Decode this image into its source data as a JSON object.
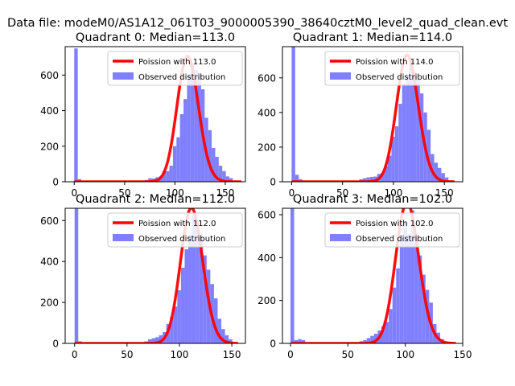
{
  "suptitle": "Data file: modeM0/AS1A12_061T03_9000005390_38640cztM0_level2_quad_clean.evt",
  "colors": {
    "poisson": "#ff0000",
    "observed": "#8080ff",
    "axis": "#000000",
    "legend_border": "#cccccc"
  },
  "chart_data": [
    {
      "type": "bar",
      "title": "Quadrant 0: Median=113.0",
      "xlabel": "",
      "ylabel": "",
      "xlim": [
        -9,
        170
      ],
      "ylim": [
        0,
        760
      ],
      "xticks": [
        0,
        50,
        100,
        150
      ],
      "yticks": [
        0,
        200,
        400,
        600
      ],
      "grid": false,
      "legend_position": "top-right",
      "series": [
        {
          "name": "Poission with 113.0",
          "kind": "line",
          "mean": 113.0,
          "x_range": [
            0,
            166
          ]
        },
        {
          "name": "Observed distribution",
          "kind": "histogram",
          "bin_width": 3.5,
          "bins": [
            [
              0,
              750
            ],
            [
              3.5,
              15
            ],
            [
              70,
              10
            ],
            [
              73.5,
              20
            ],
            [
              77,
              18
            ],
            [
              80.5,
              25
            ],
            [
              84,
              30
            ],
            [
              87.5,
              60
            ],
            [
              91,
              60
            ],
            [
              94.5,
              90
            ],
            [
              98,
              200
            ],
            [
              101.5,
              250
            ],
            [
              105,
              380
            ],
            [
              108.5,
              465
            ],
            [
              112,
              605
            ],
            [
              115.5,
              665
            ],
            [
              119,
              630
            ],
            [
              122.5,
              610
            ],
            [
              126,
              520
            ],
            [
              129.5,
              360
            ],
            [
              133,
              290
            ],
            [
              136.5,
              190
            ],
            [
              140,
              140
            ],
            [
              143.5,
              90
            ],
            [
              147,
              60
            ],
            [
              150.5,
              30
            ],
            [
              154,
              20
            ]
          ]
        }
      ]
    },
    {
      "type": "bar",
      "title": "Quadrant 1: Median=114.0",
      "xlabel": "",
      "ylabel": "",
      "xlim": [
        -9,
        168
      ],
      "ylim": [
        0,
        780
      ],
      "xticks": [
        0,
        50,
        100,
        150
      ],
      "yticks": [
        0,
        200,
        400,
        600
      ],
      "grid": false,
      "legend_position": "top-right",
      "series": [
        {
          "name": "Poission with 114.0",
          "kind": "line",
          "mean": 114.0,
          "x_range": [
            0,
            160
          ]
        },
        {
          "name": "Observed distribution",
          "kind": "histogram",
          "bin_width": 3.5,
          "bins": [
            [
              0,
              780
            ],
            [
              3.5,
              40
            ],
            [
              7,
              15
            ],
            [
              66.5,
              15
            ],
            [
              70,
              20
            ],
            [
              73.5,
              25
            ],
            [
              77,
              28
            ],
            [
              80.5,
              30
            ],
            [
              84,
              45
            ],
            [
              87.5,
              50
            ],
            [
              91,
              90
            ],
            [
              94.5,
              150
            ],
            [
              98,
              260
            ],
            [
              101.5,
              320
            ],
            [
              105,
              450
            ],
            [
              108.5,
              565
            ],
            [
              112,
              610
            ],
            [
              115.5,
              690
            ],
            [
              119,
              630
            ],
            [
              122.5,
              590
            ],
            [
              126,
              510
            ],
            [
              129.5,
              400
            ],
            [
              133,
              300
            ],
            [
              136.5,
              160
            ],
            [
              140,
              110
            ],
            [
              143.5,
              80
            ],
            [
              147,
              50
            ],
            [
              150.5,
              25
            ]
          ]
        }
      ]
    },
    {
      "type": "bar",
      "title": "Quadrant 2: Median=112.0",
      "xlabel": "",
      "ylabel": "",
      "xlim": [
        -9,
        163
      ],
      "ylim": [
        0,
        660
      ],
      "xticks": [
        0,
        50,
        100,
        150
      ],
      "yticks": [
        0,
        200,
        400,
        600
      ],
      "grid": false,
      "legend_position": "top-right",
      "series": [
        {
          "name": "Poission with 112.0",
          "kind": "line",
          "mean": 112.0,
          "x_range": [
            0,
            156
          ]
        },
        {
          "name": "Observed distribution",
          "kind": "histogram",
          "bin_width": 3.5,
          "bins": [
            [
              0,
              660
            ],
            [
              3.5,
              10
            ],
            [
              66.5,
              10
            ],
            [
              70,
              20
            ],
            [
              73.5,
              25
            ],
            [
              77,
              30
            ],
            [
              80.5,
              40
            ],
            [
              84,
              55
            ],
            [
              87.5,
              95
            ],
            [
              91,
              130
            ],
            [
              94.5,
              180
            ],
            [
              98,
              260
            ],
            [
              101.5,
              370
            ],
            [
              105,
              460
            ],
            [
              108.5,
              530
            ],
            [
              112,
              625
            ],
            [
              115.5,
              600
            ],
            [
              119,
              520
            ],
            [
              122.5,
              430
            ],
            [
              126,
              360
            ],
            [
              129.5,
              290
            ],
            [
              133,
              220
            ],
            [
              136.5,
              120
            ],
            [
              140,
              70
            ],
            [
              143.5,
              40
            ],
            [
              147,
              20
            ]
          ]
        }
      ]
    },
    {
      "type": "bar",
      "title": "Quadrant 3: Median=102.0",
      "xlabel": "",
      "ylabel": "",
      "xlim": [
        -7,
        150
      ],
      "ylim": [
        0,
        630
      ],
      "xticks": [
        0,
        50,
        100,
        150
      ],
      "yticks": [
        0,
        200,
        400,
        600
      ],
      "grid": false,
      "legend_position": "top-right",
      "series": [
        {
          "name": "Poission with 102.0",
          "kind": "line",
          "mean": 102.0,
          "x_range": [
            0,
            144
          ]
        },
        {
          "name": "Observed distribution",
          "kind": "histogram",
          "bin_width": 3.2,
          "bins": [
            [
              0,
              630
            ],
            [
              3.2,
              15
            ],
            [
              6.4,
              20
            ],
            [
              9.6,
              15
            ],
            [
              60,
              10
            ],
            [
              63.2,
              15
            ],
            [
              66.4,
              25
            ],
            [
              69.6,
              35
            ],
            [
              72.8,
              45
            ],
            [
              76,
              60
            ],
            [
              79.2,
              80
            ],
            [
              82.4,
              100
            ],
            [
              85.6,
              160
            ],
            [
              88.8,
              260
            ],
            [
              92,
              350
            ],
            [
              95.2,
              490
            ],
            [
              98.4,
              570
            ],
            [
              101.6,
              510
            ],
            [
              104.8,
              620
            ],
            [
              108,
              470
            ],
            [
              111.2,
              410
            ],
            [
              114.4,
              320
            ],
            [
              117.6,
              250
            ],
            [
              120.8,
              190
            ],
            [
              124,
              90
            ],
            [
              127.2,
              50
            ],
            [
              130.4,
              20
            ]
          ]
        }
      ]
    }
  ]
}
